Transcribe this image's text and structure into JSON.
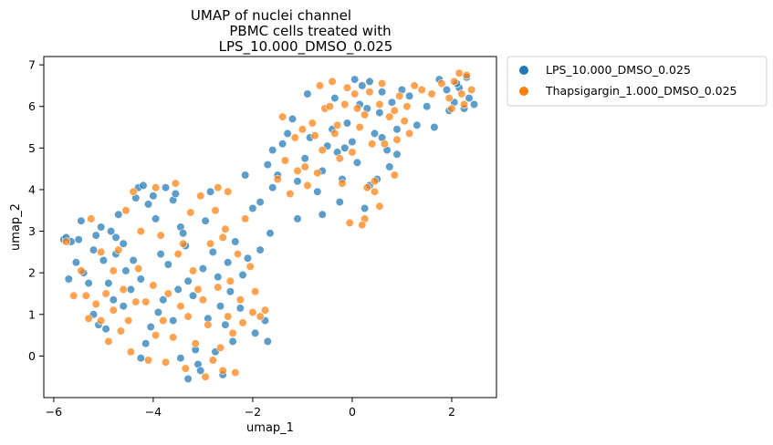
{
  "chart_data": {
    "type": "scatter",
    "title_lines": [
      "UMAP of nuclei channel",
      "PBMC cells treated with",
      "LPS_10.000_DMSO_0.025"
    ],
    "xlabel": "umap_1",
    "ylabel": "umap_2",
    "xlim": [
      -6.2,
      2.9
    ],
    "ylim": [
      -1.0,
      7.2
    ],
    "xticks": [
      -6,
      -4,
      -2,
      0,
      2
    ],
    "yticks": [
      0,
      1,
      2,
      3,
      4,
      5,
      6,
      7
    ],
    "grid": false,
    "legend_position": "outside-top-right",
    "series": [
      {
        "name": "LPS_10.000_DMSO_0.025",
        "color": "#1f77b4",
        "points": [
          [
            -5.8,
            2.8
          ],
          [
            -5.75,
            2.85
          ],
          [
            -5.7,
            1.85
          ],
          [
            -5.65,
            2.75
          ],
          [
            -5.55,
            2.25
          ],
          [
            -5.5,
            2.8
          ],
          [
            -5.45,
            3.25
          ],
          [
            -5.4,
            2.0
          ],
          [
            -5.3,
            1.75
          ],
          [
            -5.2,
            2.55
          ],
          [
            -5.15,
            2.9
          ],
          [
            -5.05,
            3.1
          ],
          [
            -5.0,
            2.3
          ],
          [
            -5.1,
            0.75
          ],
          [
            -4.95,
            0.65
          ],
          [
            -4.85,
            3.0
          ],
          [
            -4.75,
            2.85
          ],
          [
            -4.6,
            2.7
          ],
          [
            -4.7,
            3.4
          ],
          [
            -4.55,
            2.05
          ],
          [
            -4.35,
            3.8
          ],
          [
            -4.3,
            4.05
          ],
          [
            -4.2,
            4.1
          ],
          [
            -4.1,
            3.65
          ],
          [
            -4.0,
            3.85
          ],
          [
            -3.95,
            3.3
          ],
          [
            -3.85,
            2.45
          ],
          [
            -3.8,
            1.35
          ],
          [
            -3.75,
            4.05
          ],
          [
            -3.6,
            3.75
          ],
          [
            -3.55,
            3.9
          ],
          [
            -3.45,
            3.1
          ],
          [
            -3.4,
            2.95
          ],
          [
            -3.35,
            2.65
          ],
          [
            -3.3,
            1.8
          ],
          [
            -3.2,
            1.45
          ],
          [
            -3.15,
            0.15
          ],
          [
            -3.1,
            -0.2
          ],
          [
            -3.05,
            -0.35
          ],
          [
            -3.0,
            2.1
          ],
          [
            -2.95,
            3.25
          ],
          [
            -2.85,
            3.95
          ],
          [
            -2.8,
            2.5
          ],
          [
            -2.7,
            1.9
          ],
          [
            -2.65,
            1.2
          ],
          [
            -2.55,
            0.75
          ],
          [
            -2.5,
            2.25
          ],
          [
            -2.45,
            1.55
          ],
          [
            -2.4,
            0.35
          ],
          [
            -2.35,
            2.75
          ],
          [
            -2.25,
            1.15
          ],
          [
            -2.2,
            1.95
          ],
          [
            -2.15,
            4.35
          ],
          [
            -2.1,
            2.35
          ],
          [
            -1.95,
            0.55
          ],
          [
            -1.85,
            3.7
          ],
          [
            -1.75,
            0.85
          ],
          [
            -1.7,
            0.35
          ],
          [
            -3.9,
            1.05
          ],
          [
            -4.05,
            0.7
          ],
          [
            -4.15,
            0.3
          ],
          [
            -4.25,
            -0.05
          ],
          [
            -3.6,
            0.85
          ],
          [
            -3.45,
            -0.05
          ],
          [
            -2.9,
            0.9
          ],
          [
            -2.75,
            0.1
          ],
          [
            -2.6,
            -0.45
          ],
          [
            -3.3,
            -0.55
          ],
          [
            -4.45,
            1.6
          ],
          [
            -4.6,
            1.2
          ],
          [
            -4.8,
            1.35
          ],
          [
            -5.2,
            1.0
          ],
          [
            -4.9,
            1.75
          ],
          [
            -4.4,
            2.3
          ],
          [
            -3.7,
            2.2
          ],
          [
            -3.5,
            1.6
          ],
          [
            -4.25,
            1.85
          ],
          [
            -4.75,
            2.45
          ],
          [
            -1.7,
            4.6
          ],
          [
            -1.6,
            4.95
          ],
          [
            -1.5,
            4.35
          ],
          [
            -1.4,
            5.1
          ],
          [
            -1.3,
            5.35
          ],
          [
            -1.2,
            5.7
          ],
          [
            -1.1,
            4.2
          ],
          [
            -0.95,
            4.75
          ],
          [
            -0.85,
            5.25
          ],
          [
            -0.7,
            3.95
          ],
          [
            -0.6,
            4.45
          ],
          [
            -0.5,
            5.05
          ],
          [
            -0.4,
            5.45
          ],
          [
            -0.3,
            4.9
          ],
          [
            -0.2,
            4.25
          ],
          [
            -0.1,
            5.6
          ],
          [
            0.0,
            5.15
          ],
          [
            0.1,
            4.65
          ],
          [
            0.15,
            6.05
          ],
          [
            0.2,
            6.5
          ],
          [
            0.3,
            5.95
          ],
          [
            0.35,
            4.1
          ],
          [
            0.45,
            5.35
          ],
          [
            0.55,
            5.85
          ],
          [
            0.6,
            6.35
          ],
          [
            0.7,
            4.95
          ],
          [
            0.8,
            6.1
          ],
          [
            0.9,
            5.45
          ],
          [
            1.0,
            6.4
          ],
          [
            1.15,
            6.25
          ],
          [
            0.05,
            6.65
          ],
          [
            0.35,
            6.6
          ],
          [
            0.25,
            3.55
          ],
          [
            -0.25,
            3.7
          ],
          [
            -0.6,
            3.4
          ],
          [
            -1.1,
            3.3
          ],
          [
            -1.6,
            4.05
          ],
          [
            -2.0,
            3.55
          ],
          [
            -1.85,
            2.55
          ],
          [
            -1.65,
            2.95
          ],
          [
            1.3,
            5.55
          ],
          [
            1.5,
            6.0
          ],
          [
            1.65,
            5.5
          ],
          [
            1.75,
            6.65
          ],
          [
            1.9,
            6.4
          ],
          [
            2.05,
            6.1
          ],
          [
            2.15,
            6.45
          ],
          [
            2.25,
            5.95
          ],
          [
            2.35,
            6.2
          ],
          [
            2.45,
            6.05
          ],
          [
            1.95,
            5.9
          ],
          [
            2.1,
            6.55
          ],
          [
            2.3,
            6.7
          ],
          [
            0.5,
            4.25
          ],
          [
            0.75,
            4.55
          ],
          [
            0.9,
            4.85
          ],
          [
            -0.35,
            6.2
          ],
          [
            -0.9,
            6.3
          ],
          [
            -0.15,
            5.0
          ],
          [
            0.6,
            5.25
          ]
        ]
      },
      {
        "name": "Thapsigargin_1.000_DMSO_0.025",
        "color": "#ff7f0e",
        "points": [
          [
            -5.75,
            2.75
          ],
          [
            -5.6,
            1.45
          ],
          [
            -5.45,
            2.05
          ],
          [
            -5.35,
            1.45
          ],
          [
            -5.25,
            3.3
          ],
          [
            -5.15,
            1.25
          ],
          [
            -5.05,
            0.85
          ],
          [
            -4.95,
            1.5
          ],
          [
            -4.9,
            0.35
          ],
          [
            -4.8,
            1.1
          ],
          [
            -4.7,
            2.55
          ],
          [
            -4.65,
            0.6
          ],
          [
            -4.5,
            0.85
          ],
          [
            -4.45,
            0.1
          ],
          [
            -4.35,
            1.3
          ],
          [
            -4.3,
            2.1
          ],
          [
            -4.25,
            3.0
          ],
          [
            -4.1,
            -0.1
          ],
          [
            -4.0,
            1.7
          ],
          [
            -3.95,
            0.5
          ],
          [
            -3.85,
            2.9
          ],
          [
            -3.75,
            -0.15
          ],
          [
            -3.7,
            1.5
          ],
          [
            -3.6,
            0.45
          ],
          [
            -3.55,
            4.15
          ],
          [
            -3.5,
            2.45
          ],
          [
            -3.45,
            1.2
          ],
          [
            -3.35,
            -0.3
          ],
          [
            -3.3,
            0.95
          ],
          [
            -3.25,
            3.45
          ],
          [
            -3.2,
            2.05
          ],
          [
            -3.15,
            0.3
          ],
          [
            -3.05,
            3.85
          ],
          [
            -3.0,
            1.35
          ],
          [
            -2.95,
            -0.5
          ],
          [
            -2.9,
            0.75
          ],
          [
            -2.85,
            2.7
          ],
          [
            -2.8,
            -0.1
          ],
          [
            -2.75,
            3.5
          ],
          [
            -2.7,
            1.65
          ],
          [
            -2.65,
            0.2
          ],
          [
            -2.6,
            -0.35
          ],
          [
            -2.55,
            3.05
          ],
          [
            -2.5,
            0.95
          ],
          [
            -2.45,
            1.8
          ],
          [
            -2.4,
            0.55
          ],
          [
            -2.35,
            -0.4
          ],
          [
            -2.3,
            2.45
          ],
          [
            -2.25,
            1.35
          ],
          [
            -2.2,
            0.8
          ],
          [
            -2.15,
            3.3
          ],
          [
            -2.05,
            2.15
          ],
          [
            -2.0,
            1.05
          ],
          [
            -1.95,
            1.55
          ],
          [
            -1.85,
            0.95
          ],
          [
            -1.75,
            1.1
          ],
          [
            -2.5,
            3.95
          ],
          [
            -2.7,
            4.05
          ],
          [
            -3.95,
            4.05
          ],
          [
            -4.4,
            3.95
          ],
          [
            -4.55,
            3.5
          ],
          [
            -4.8,
            2.05
          ],
          [
            -5.05,
            2.5
          ],
          [
            -5.3,
            0.9
          ],
          [
            -4.6,
            1.6
          ],
          [
            -4.15,
            1.3
          ],
          [
            -3.8,
            0.85
          ],
          [
            -3.4,
            2.7
          ],
          [
            -3.1,
            1.6
          ],
          [
            -2.6,
            2.85
          ],
          [
            -1.35,
            4.7
          ],
          [
            -1.25,
            3.9
          ],
          [
            -1.15,
            5.25
          ],
          [
            -1.0,
            5.45
          ],
          [
            -0.9,
            4.1
          ],
          [
            -0.8,
            5.6
          ],
          [
            -0.7,
            4.4
          ],
          [
            -0.55,
            5.95
          ],
          [
            -0.45,
            6.0
          ],
          [
            -0.35,
            5.35
          ],
          [
            -0.25,
            4.75
          ],
          [
            -0.15,
            6.05
          ],
          [
            -0.05,
            3.2
          ],
          [
            0.05,
            6.3
          ],
          [
            0.15,
            5.5
          ],
          [
            0.25,
            3.3
          ],
          [
            0.3,
            4.05
          ],
          [
            0.35,
            6.35
          ],
          [
            0.45,
            3.95
          ],
          [
            0.55,
            6.05
          ],
          [
            0.65,
            5.1
          ],
          [
            0.75,
            5.75
          ],
          [
            0.85,
            5.9
          ],
          [
            0.95,
            6.25
          ],
          [
            1.05,
            5.65
          ],
          [
            1.15,
            5.35
          ],
          [
            0.25,
            5.8
          ],
          [
            0.45,
            4.2
          ],
          [
            -0.6,
            4.95
          ],
          [
            -0.95,
            4.55
          ],
          [
            -0.65,
            6.5
          ],
          [
            -0.4,
            6.6
          ],
          [
            0.1,
            5.95
          ],
          [
            0.6,
            6.55
          ],
          [
            1.4,
            6.4
          ],
          [
            1.6,
            6.3
          ],
          [
            1.8,
            6.55
          ],
          [
            1.95,
            6.2
          ],
          [
            2.05,
            6.6
          ],
          [
            2.15,
            6.8
          ],
          [
            2.2,
            6.3
          ],
          [
            2.3,
            6.75
          ],
          [
            2.4,
            6.4
          ],
          [
            2.25,
            6.05
          ],
          [
            2.0,
            5.95
          ],
          [
            -1.1,
            4.45
          ],
          [
            -0.2,
            4.15
          ],
          [
            0.2,
            3.15
          ],
          [
            -1.5,
            4.25
          ],
          [
            0.85,
            4.35
          ],
          [
            0.9,
            5.2
          ],
          [
            1.1,
            6.0
          ],
          [
            0.0,
            4.9
          ],
          [
            -0.3,
            5.55
          ],
          [
            0.55,
            3.6
          ],
          [
            -0.75,
            5.3
          ],
          [
            -1.4,
            5.75
          ],
          [
            1.25,
            6.5
          ],
          [
            0.4,
            5.1
          ],
          [
            -0.1,
            6.45
          ]
        ]
      }
    ]
  }
}
